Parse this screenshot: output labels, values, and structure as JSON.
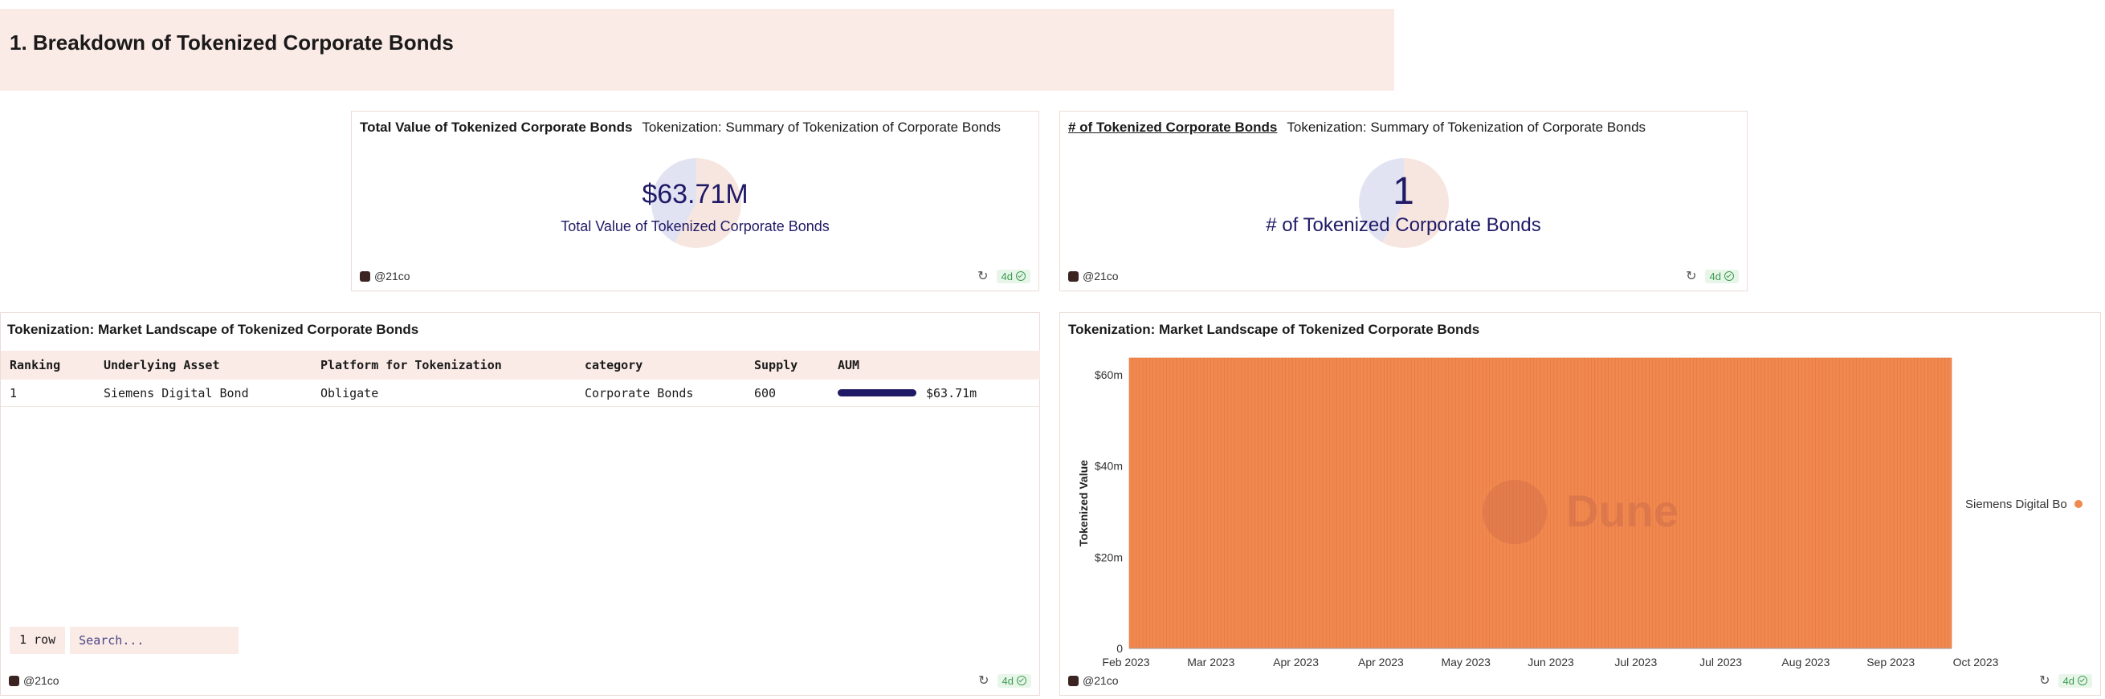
{
  "section": {
    "title": "1. Breakdown of Tokenized Corporate Bonds"
  },
  "counter_total_value": {
    "title": "Total Value of Tokenized Corporate Bonds",
    "subtitle": "Tokenization: Summary of Tokenization of Corporate Bonds",
    "value": "$63.71M",
    "label": "Total Value of Tokenized Corporate Bonds",
    "owner": "@21co",
    "age": "4d"
  },
  "counter_count": {
    "title": "# of Tokenized Corporate Bonds",
    "subtitle": "Tokenization: Summary of Tokenization of Corporate Bonds",
    "value": "1",
    "label": "# of Tokenized Corporate Bonds",
    "owner": "@21co",
    "age": "4d"
  },
  "landscape_table": {
    "title": "Tokenization: Market Landscape of Tokenized Corporate Bonds",
    "columns": [
      "Ranking",
      "Underlying Asset",
      "Platform for Tokenization",
      "category",
      "Supply",
      "AUM"
    ],
    "rows": [
      {
        "ranking": "1",
        "asset": "Siemens Digital Bond",
        "platform": "Obligate",
        "category": "Corporate Bonds",
        "supply": "600",
        "aum": "$63.71m",
        "aum_fraction": 1.0
      }
    ],
    "row_count": "1 row",
    "search_placeholder": "Search...",
    "owner": "@21co",
    "age": "4d"
  },
  "landscape_chart": {
    "title": "Tokenization: Market Landscape of Tokenized Corporate Bonds",
    "owner": "@21co",
    "age": "4d",
    "watermark": "Dune",
    "legend_full": "Siemens Digital Bond",
    "legend_visible": "Siemens Digital Bo",
    "colors": {
      "series": "#f0884f",
      "line": "#e57a42"
    }
  },
  "chart_data": {
    "type": "bar",
    "stacked": true,
    "title": "Tokenization: Market Landscape of Tokenized Corporate Bonds",
    "xlabel": "",
    "ylabel": "Tokenized Value",
    "x_tick_labels": [
      "Feb 2023",
      "Mar 2023",
      "Apr 2023",
      "Apr 2023",
      "May 2023",
      "Jun 2023",
      "Jul 2023",
      "Jul 2023",
      "Aug 2023",
      "Sep 2023",
      "Oct 2023"
    ],
    "y_tick_labels": [
      "0",
      "$20m",
      "$40m",
      "$60m"
    ],
    "ylim": [
      0,
      63710000
    ],
    "x_range": [
      "2023-02-01",
      "2023-10-01"
    ],
    "series": [
      {
        "name": "Siemens Digital Bond",
        "daily_value": 63710000,
        "start": "2023-02-01",
        "end": "2023-10-01"
      }
    ],
    "legend_position": "right",
    "grid": false
  }
}
